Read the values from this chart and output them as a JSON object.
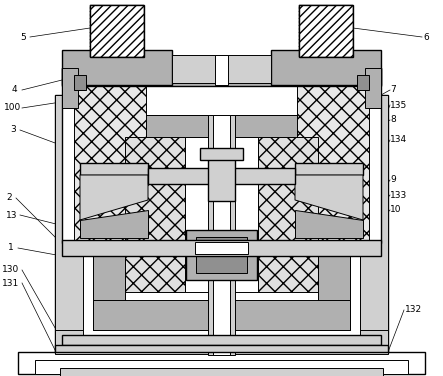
{
  "figure_width": 4.43,
  "figure_height": 3.76,
  "dpi": 100,
  "bg_color": "#ffffff",
  "lc": "#000000",
  "gray1": "#b0b0b0",
  "gray2": "#d0d0d0",
  "gray3": "#909090",
  "white": "#ffffff",
  "hatch_gray": "#c8c8c8"
}
